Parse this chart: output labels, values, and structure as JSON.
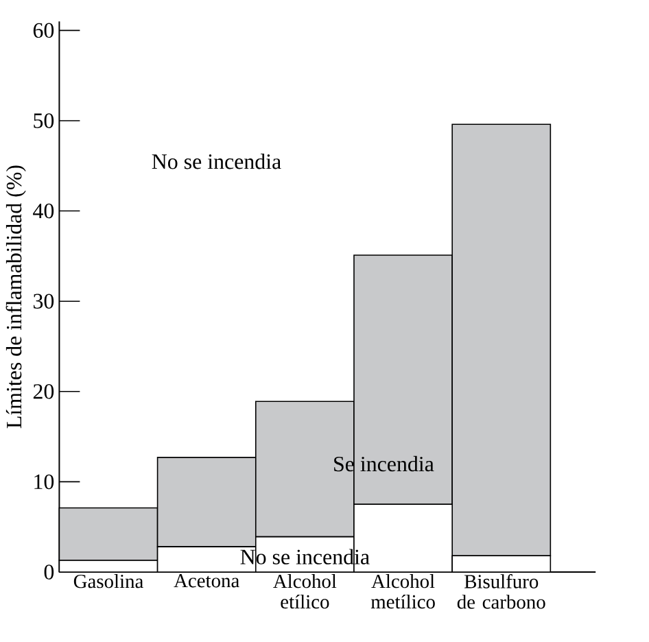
{
  "chart_data": {
    "type": "bar",
    "stacked": true,
    "ylabel": "Límites de inflamabilidad (%)",
    "categories": [
      "Gasolina",
      "Acetona",
      "Alcohol etílico",
      "Alcohol metílico",
      "Bisulfuro de carbono"
    ],
    "series": [
      {
        "color": "#ffffff",
        "values": [
          1.3,
          2.8,
          3.9,
          7.5,
          1.8
        ]
      },
      {
        "color": "#c8c9cb",
        "values": [
          5.8,
          9.9,
          15.0,
          27.6,
          47.8
        ]
      }
    ],
    "ylim": [
      0,
      61
    ],
    "yticks": [
      0,
      10,
      20,
      30,
      40,
      50,
      60
    ],
    "annotations": [
      "No se incendia",
      "Se incendia",
      "No se incendia"
    ]
  }
}
